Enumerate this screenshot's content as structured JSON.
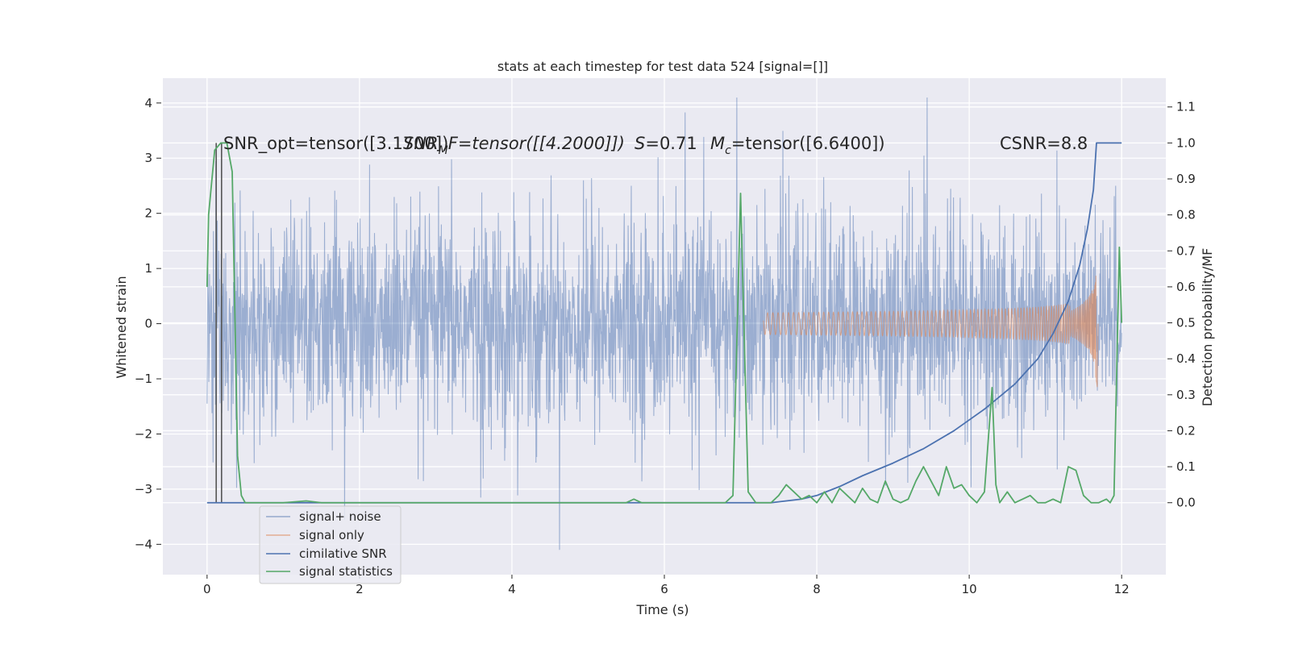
{
  "chart_data": {
    "type": "line",
    "title": "stats at each timestep for test data 524 [signal=[]]",
    "xlabel": "Time (s)",
    "ylabel": "Whitened strain",
    "y2label": "Detection probability/MF",
    "xlim": [
      -0.58,
      12.58
    ],
    "ylim": [
      -4.55,
      4.45
    ],
    "y2lim": [
      -0.2,
      1.18
    ],
    "xticks": [
      0,
      2,
      4,
      6,
      8,
      10,
      12
    ],
    "xtick_labels": [
      "0",
      "2",
      "4",
      "6",
      "8",
      "10",
      "12"
    ],
    "yticks": [
      4,
      3,
      2,
      1,
      0,
      -1,
      -2,
      -3,
      -4
    ],
    "ytick_labels": [
      "4",
      "3",
      "2",
      "1",
      "0",
      "−1",
      "−2",
      "−3",
      "−4"
    ],
    "y2ticks": [
      1.1,
      1.0,
      0.9,
      0.8,
      0.7,
      0.6,
      0.5,
      0.4,
      0.3,
      0.2,
      0.1,
      0.0
    ],
    "y2tick_labels": [
      "1.1",
      "1.0",
      "0.9",
      "0.8",
      "0.7",
      "0.6",
      "0.5",
      "0.4",
      "0.3",
      "0.2",
      "0.1",
      "0.0"
    ],
    "grid": true,
    "legend_position": "lower-left",
    "annotations": {
      "snr_opt": "SNR_opt=tensor([3.1700])",
      "snr_mf": "SNR$_{M}F$=tensor([[4.2000]])",
      "s_val": "$S$=0.71",
      "mc": "$M_c$=tensor([6.6400])",
      "csnr": "CSNR=8.8",
      "overlap_fragment": "SNR",
      "mf_subscript": "M",
      "mf_rest": "F=tensor([[4.2000]])",
      "s_symbol": "S",
      "s_rest": "=0.71",
      "mc_symbol": "M",
      "mc_subscript": "c",
      "mc_rest": "=tensor([6.6400])"
    },
    "series": [
      {
        "name": "signal+ noise",
        "color": "#4c72b0",
        "alpha": 0.5,
        "axis": "left",
        "description": "whitened noisy strain, roughly within ±3, spikes to ~4.1",
        "envelope": {
          "x_start": 0.0,
          "x_end": 12.0,
          "typical_abs": 1.3,
          "extreme_max": 4.1,
          "extreme_min": -4.1
        }
      },
      {
        "name": "signal only",
        "color": "#dd8452",
        "alpha": 0.6,
        "axis": "left",
        "description": "chirp signal growing in amplitude toward merger",
        "chirp": {
          "t_start": 7.3,
          "t_merge": 11.67,
          "max_amp": 1.05,
          "min_amp": -1.15
        }
      },
      {
        "name": "cimilative SNR",
        "color": "#4c72b0",
        "alpha": 1.0,
        "axis": "right",
        "x": [
          0.0,
          7.4,
          7.8,
          8.0,
          8.3,
          8.6,
          9.0,
          9.4,
          9.8,
          10.2,
          10.6,
          10.9,
          11.1,
          11.3,
          11.45,
          11.55,
          11.63,
          11.67,
          12.0
        ],
        "y": [
          0.0,
          0.0,
          0.01,
          0.02,
          0.045,
          0.075,
          0.11,
          0.15,
          0.2,
          0.26,
          0.33,
          0.4,
          0.47,
          0.56,
          0.66,
          0.76,
          0.87,
          1.0,
          1.0
        ]
      },
      {
        "name": "signal statistics",
        "color": "#55a868",
        "alpha": 1.0,
        "axis": "right",
        "x": [
          0.0,
          0.02,
          0.1,
          0.18,
          0.26,
          0.33,
          0.4,
          0.45,
          0.5,
          0.6,
          1.0,
          1.3,
          1.5,
          2.0,
          3.0,
          4.0,
          5.0,
          5.5,
          5.6,
          5.7,
          6.0,
          6.8,
          6.9,
          7.0,
          7.1,
          7.2,
          7.3,
          7.4,
          7.5,
          7.6,
          7.7,
          7.8,
          7.9,
          8.0,
          8.1,
          8.2,
          8.3,
          8.4,
          8.5,
          8.6,
          8.7,
          8.8,
          8.9,
          9.0,
          9.1,
          9.2,
          9.3,
          9.4,
          9.5,
          9.6,
          9.7,
          9.8,
          9.9,
          10.0,
          10.1,
          10.2,
          10.3,
          10.35,
          10.4,
          10.5,
          10.6,
          10.7,
          10.8,
          10.9,
          11.0,
          11.1,
          11.2,
          11.3,
          11.4,
          11.5,
          11.6,
          11.7,
          11.8,
          11.85,
          11.9,
          11.97,
          12.0
        ],
        "y": [
          0.6,
          0.8,
          0.98,
          1.0,
          1.0,
          0.92,
          0.13,
          0.02,
          0.0,
          0.0,
          0.0,
          0.005,
          0.0,
          0.0,
          0.0,
          0.0,
          0.0,
          0.0,
          0.01,
          0.0,
          0.0,
          0.0,
          0.02,
          0.86,
          0.03,
          0.0,
          0.0,
          0.0,
          0.02,
          0.05,
          0.03,
          0.01,
          0.02,
          0.0,
          0.03,
          0.0,
          0.04,
          0.02,
          0.0,
          0.04,
          0.01,
          0.0,
          0.06,
          0.01,
          0.0,
          0.01,
          0.06,
          0.1,
          0.06,
          0.02,
          0.1,
          0.04,
          0.05,
          0.02,
          0.0,
          0.03,
          0.32,
          0.05,
          0.0,
          0.03,
          0.0,
          0.01,
          0.02,
          0.0,
          0.0,
          0.01,
          0.0,
          0.1,
          0.09,
          0.02,
          0.0,
          0.0,
          0.01,
          0.0,
          0.02,
          0.71,
          0.5
        ]
      }
    ],
    "vertical_markers": {
      "color": "#555555",
      "x": [
        0.12,
        0.19
      ],
      "y_bottom": 0.0,
      "y_top": 1.0
    }
  }
}
